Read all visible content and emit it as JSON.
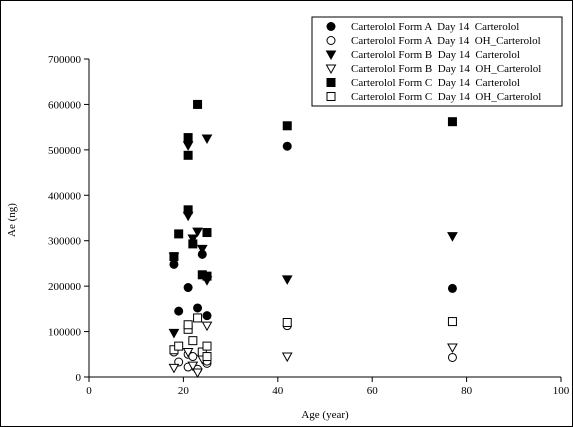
{
  "chart_data": {
    "type": "scatter",
    "xlabel": "Age (year)",
    "ylabel": "Ae (ng)",
    "xlim": [
      0,
      100
    ],
    "ylim": [
      0,
      700000
    ],
    "xticks": [
      0,
      20,
      40,
      60,
      80,
      100
    ],
    "yticks": [
      0,
      100000,
      200000,
      300000,
      400000,
      500000,
      600000,
      700000
    ],
    "xtick_labels": [
      "0",
      "20",
      "40",
      "60",
      "80",
      "100"
    ],
    "ytick_labels": [
      "0",
      "100000",
      "200000",
      "300000",
      "400000",
      "500000",
      "600000",
      "700000"
    ],
    "grid": false,
    "legend_position": "top-right",
    "series": [
      {
        "name": "Carterolol Form A  Day 14  Carterolol",
        "marker": "circle-filled",
        "points": [
          [
            18,
            248000
          ],
          [
            19,
            145000
          ],
          [
            21,
            197000
          ],
          [
            23,
            152000
          ],
          [
            24,
            270000
          ],
          [
            25,
            135000
          ],
          [
            42,
            508000
          ],
          [
            77,
            195000
          ]
        ]
      },
      {
        "name": "Carterolol Form A  Day 14  OH_Carterolol",
        "marker": "circle-open",
        "points": [
          [
            18,
            55000
          ],
          [
            19,
            33000
          ],
          [
            21,
            50000
          ],
          [
            21,
            22000
          ],
          [
            22,
            45000
          ],
          [
            23,
            17000
          ],
          [
            24,
            50000
          ],
          [
            25,
            30000
          ],
          [
            25,
            35000
          ],
          [
            42,
            113000
          ],
          [
            77,
            43000
          ]
        ]
      },
      {
        "name": "Carterolol Form B  Day 14  Carterolol",
        "marker": "triangle-down-filled",
        "points": [
          [
            18,
            97000
          ],
          [
            18,
            265000
          ],
          [
            21,
            355000
          ],
          [
            21,
            510000
          ],
          [
            22,
            305000
          ],
          [
            23,
            320000
          ],
          [
            24,
            282000
          ],
          [
            25,
            213000
          ],
          [
            25,
            525000
          ],
          [
            42,
            215000
          ],
          [
            77,
            310000
          ]
        ]
      },
      {
        "name": "Carterolol Form B  Day 14  OH_Carterolol",
        "marker": "triangle-down-open",
        "points": [
          [
            18,
            20000
          ],
          [
            21,
            55000
          ],
          [
            22,
            25000
          ],
          [
            23,
            10000
          ],
          [
            24,
            40000
          ],
          [
            25,
            113000
          ],
          [
            42,
            45000
          ],
          [
            77,
            65000
          ]
        ]
      },
      {
        "name": "Carterolol Form C  Day 14  Carterolol",
        "marker": "square-filled",
        "points": [
          [
            18,
            265000
          ],
          [
            19,
            315000
          ],
          [
            21,
            368000
          ],
          [
            21,
            488000
          ],
          [
            21,
            527000
          ],
          [
            22,
            293000
          ],
          [
            23,
            600000
          ],
          [
            24,
            225000
          ],
          [
            25,
            318000
          ],
          [
            25,
            222000
          ],
          [
            42,
            553000
          ],
          [
            77,
            562000
          ]
        ]
      },
      {
        "name": "Carterolol Form C  Day 14  OH_Carterolol",
        "marker": "square-open",
        "points": [
          [
            18,
            60000
          ],
          [
            19,
            68000
          ],
          [
            21,
            105000
          ],
          [
            21,
            115000
          ],
          [
            22,
            80000
          ],
          [
            23,
            130000
          ],
          [
            24,
            55000
          ],
          [
            25,
            68000
          ],
          [
            25,
            45000
          ],
          [
            42,
            120000
          ],
          [
            77,
            122000
          ]
        ]
      }
    ]
  }
}
